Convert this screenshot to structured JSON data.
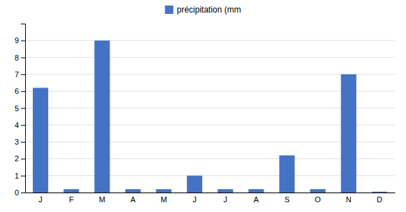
{
  "chart_data": {
    "type": "bar",
    "categories": [
      "J",
      "F",
      "M",
      "A",
      "M",
      "J",
      "J",
      "A",
      "S",
      "O",
      "N",
      "D"
    ],
    "series": [
      {
        "name": "précipitation (mm",
        "color": "#4472C4",
        "values": [
          6.2,
          0.2,
          9.0,
          0.2,
          0.2,
          1.0,
          0.2,
          0.2,
          2.2,
          0.2,
          7.0,
          0.05
        ]
      }
    ],
    "ylim": [
      0,
      10
    ],
    "yticks": [
      0,
      1,
      2,
      3,
      4,
      5,
      6,
      7,
      8,
      9
    ],
    "grid": true,
    "legend": "top"
  }
}
